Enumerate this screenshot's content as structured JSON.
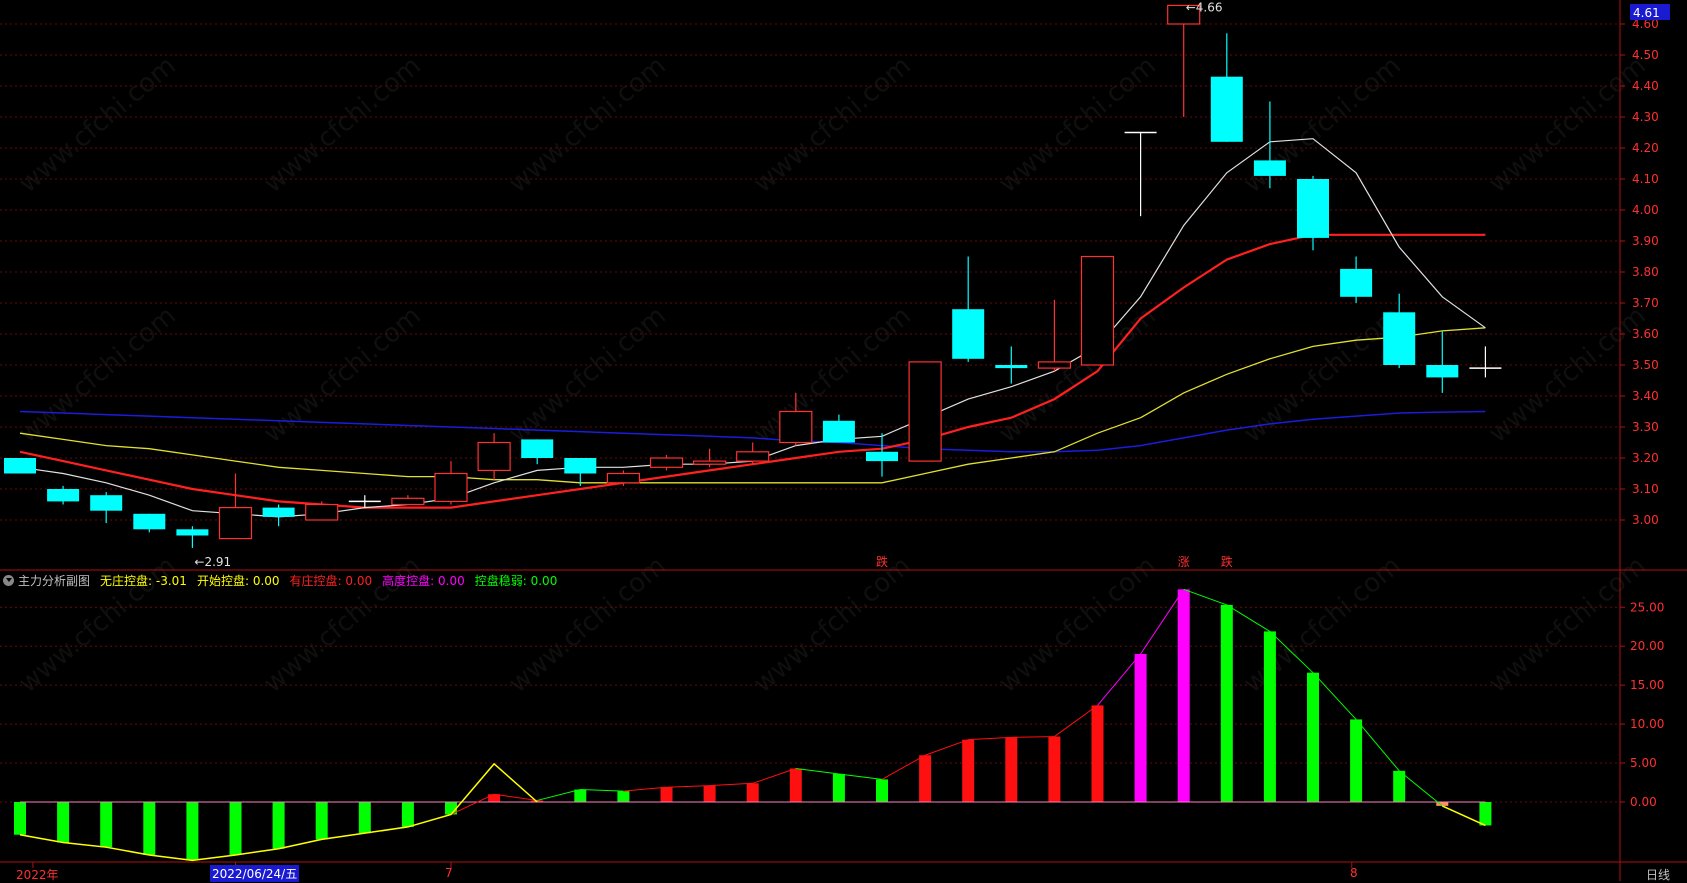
{
  "chart_data": [
    {
      "type": "candlestick",
      "ylim": [
        2.9,
        4.61
      ],
      "yticks": [
        3.0,
        3.1,
        3.2,
        3.3,
        3.4,
        3.5,
        3.6,
        3.7,
        3.8,
        3.9,
        4.0,
        4.1,
        4.2,
        4.3,
        4.4,
        4.5,
        4.6
      ],
      "top_value_label": "4.61",
      "candles": [
        {
          "o": 3.2,
          "h": 3.2,
          "l": 3.15,
          "c": 3.15
        },
        {
          "o": 3.1,
          "h": 3.11,
          "l": 3.05,
          "c": 3.06
        },
        {
          "o": 3.08,
          "h": 3.09,
          "l": 2.99,
          "c": 3.03
        },
        {
          "o": 3.02,
          "h": 3.02,
          "l": 2.96,
          "c": 2.97
        },
        {
          "o": 2.97,
          "h": 2.98,
          "l": 2.91,
          "c": 2.95
        },
        {
          "o": 2.94,
          "h": 3.15,
          "l": 2.94,
          "c": 3.04
        },
        {
          "o": 3.04,
          "h": 3.05,
          "l": 2.98,
          "c": 3.01
        },
        {
          "o": 3.0,
          "h": 3.06,
          "l": 3.0,
          "c": 3.05
        },
        {
          "o": 3.06,
          "h": 3.08,
          "l": 3.04,
          "c": 3.06
        },
        {
          "o": 3.05,
          "h": 3.08,
          "l": 3.05,
          "c": 3.07
        },
        {
          "o": 3.06,
          "h": 3.19,
          "l": 3.05,
          "c": 3.15
        },
        {
          "o": 3.16,
          "h": 3.28,
          "l": 3.13,
          "c": 3.25
        },
        {
          "o": 3.26,
          "h": 3.26,
          "l": 3.18,
          "c": 3.2
        },
        {
          "o": 3.2,
          "h": 3.2,
          "l": 3.11,
          "c": 3.15
        },
        {
          "o": 3.12,
          "h": 3.16,
          "l": 3.11,
          "c": 3.15
        },
        {
          "o": 3.17,
          "h": 3.21,
          "l": 3.16,
          "c": 3.2
        },
        {
          "o": 3.18,
          "h": 3.23,
          "l": 3.17,
          "c": 3.19
        },
        {
          "o": 3.19,
          "h": 3.25,
          "l": 3.18,
          "c": 3.22
        },
        {
          "o": 3.25,
          "h": 3.41,
          "l": 3.24,
          "c": 3.35
        },
        {
          "o": 3.32,
          "h": 3.34,
          "l": 3.25,
          "c": 3.25
        },
        {
          "o": 3.22,
          "h": 3.28,
          "l": 3.14,
          "c": 3.19
        },
        {
          "o": 3.19,
          "h": 3.51,
          "l": 3.19,
          "c": 3.51
        },
        {
          "o": 3.68,
          "h": 3.85,
          "l": 3.51,
          "c": 3.52
        },
        {
          "o": 3.5,
          "h": 3.56,
          "l": 3.44,
          "c": 3.49
        },
        {
          "o": 3.49,
          "h": 3.71,
          "l": 3.48,
          "c": 3.51
        },
        {
          "o": 3.5,
          "h": 3.85,
          "l": 3.5,
          "c": 3.85
        },
        {
          "o": 4.25,
          "h": 4.25,
          "l": 3.98,
          "c": 4.25
        },
        {
          "o": 4.6,
          "h": 4.66,
          "l": 4.3,
          "c": 4.66
        },
        {
          "o": 4.43,
          "h": 4.57,
          "l": 4.22,
          "c": 4.22
        },
        {
          "o": 4.16,
          "h": 4.35,
          "l": 4.07,
          "c": 4.11
        },
        {
          "o": 4.1,
          "h": 4.11,
          "l": 3.87,
          "c": 3.91
        },
        {
          "o": 3.81,
          "h": 3.85,
          "l": 3.7,
          "c": 3.72
        },
        {
          "o": 3.67,
          "h": 3.73,
          "l": 3.49,
          "c": 3.5
        },
        {
          "o": 3.5,
          "h": 3.61,
          "l": 3.41,
          "c": 3.46
        },
        {
          "o": 3.49,
          "h": 3.56,
          "l": 3.46,
          "c": 3.49
        }
      ],
      "ma_white": [
        3.17,
        3.15,
        3.12,
        3.08,
        3.03,
        3.02,
        3.01,
        3.02,
        3.04,
        3.05,
        3.07,
        3.12,
        3.16,
        3.17,
        3.17,
        3.18,
        3.18,
        3.19,
        3.24,
        3.26,
        3.27,
        3.33,
        3.39,
        3.43,
        3.48,
        3.56,
        3.72,
        3.95,
        4.12,
        4.22,
        4.23,
        4.12,
        3.88,
        3.72,
        3.62
      ],
      "ma_red": [
        3.22,
        3.19,
        3.16,
        3.13,
        3.1,
        3.08,
        3.06,
        3.05,
        3.04,
        3.04,
        3.04,
        3.06,
        3.08,
        3.1,
        3.12,
        3.14,
        3.16,
        3.18,
        3.2,
        3.22,
        3.23,
        3.26,
        3.3,
        3.33,
        3.39,
        3.48,
        3.65,
        3.75,
        3.84,
        3.89,
        3.92,
        3.92,
        3.92,
        3.92,
        3.92
      ],
      "ma_yellow": [
        3.28,
        3.26,
        3.24,
        3.23,
        3.21,
        3.19,
        3.17,
        3.16,
        3.15,
        3.14,
        3.14,
        3.13,
        3.13,
        3.12,
        3.12,
        3.12,
        3.12,
        3.12,
        3.12,
        3.12,
        3.12,
        3.15,
        3.18,
        3.2,
        3.22,
        3.28,
        3.33,
        3.41,
        3.47,
        3.52,
        3.56,
        3.58,
        3.59,
        3.61,
        3.62
      ],
      "ma_blue": [
        3.35,
        3.345,
        3.34,
        3.335,
        3.33,
        3.325,
        3.32,
        3.315,
        3.31,
        3.305,
        3.3,
        3.295,
        3.29,
        3.285,
        3.28,
        3.275,
        3.27,
        3.265,
        3.255,
        3.25,
        3.24,
        3.23,
        3.225,
        3.22,
        3.22,
        3.225,
        3.24,
        3.265,
        3.29,
        3.31,
        3.325,
        3.335,
        3.345,
        3.348,
        3.35
      ],
      "annotations": [
        {
          "text": "←2.91",
          "index": 4,
          "value": 2.91
        },
        {
          "text": "←4.66",
          "index": 27,
          "value": 4.66
        }
      ],
      "marker_labels": [
        {
          "text": "跌",
          "index": 20
        },
        {
          "text": "涨",
          "index": 27
        },
        {
          "text": "跌",
          "index": 28
        }
      ]
    },
    {
      "type": "bar",
      "title": "主力分析副图",
      "ylim": [
        -7.5,
        30
      ],
      "yticks": [
        0.0,
        5.0,
        10.0,
        15.0,
        20.0,
        25.0
      ],
      "series": [
        {
          "name": "无庄控盘",
          "value": "-3.01",
          "color": "#ffff00"
        },
        {
          "name": "开始控盘",
          "value": "0.00",
          "color": "#ffff00"
        },
        {
          "name": "有庄控盘",
          "value": "0.00",
          "color": "#ff2020"
        },
        {
          "name": "高度控盘",
          "value": "0.00",
          "color": "#ff00ff"
        },
        {
          "name": "控盘稳弱",
          "value": "0.00",
          "color": "#00ff00"
        }
      ],
      "bars": [
        {
          "v": -4.2,
          "c": "g"
        },
        {
          "v": -5.2,
          "c": "g"
        },
        {
          "v": -5.8,
          "c": "g"
        },
        {
          "v": -6.8,
          "c": "g"
        },
        {
          "v": -7.5,
          "c": "g"
        },
        {
          "v": -6.8,
          "c": "g"
        },
        {
          "v": -6.0,
          "c": "g"
        },
        {
          "v": -4.8,
          "c": "g"
        },
        {
          "v": -4.0,
          "c": "g"
        },
        {
          "v": -3.2,
          "c": "g"
        },
        {
          "v": -1.6,
          "c": "g"
        },
        {
          "v": 1.0,
          "c": "r"
        },
        {
          "v": 0.2,
          "c": "r"
        },
        {
          "v": 1.6,
          "c": "g"
        },
        {
          "v": 1.4,
          "c": "g"
        },
        {
          "v": 1.9,
          "c": "r"
        },
        {
          "v": 2.1,
          "c": "r"
        },
        {
          "v": 2.4,
          "c": "r"
        },
        {
          "v": 4.3,
          "c": "r"
        },
        {
          "v": 3.6,
          "c": "g"
        },
        {
          "v": 2.9,
          "c": "g"
        },
        {
          "v": 6.0,
          "c": "r"
        },
        {
          "v": 8.0,
          "c": "r"
        },
        {
          "v": 8.3,
          "c": "r"
        },
        {
          "v": 8.4,
          "c": "r"
        },
        {
          "v": 12.4,
          "c": "r"
        },
        {
          "v": 19.0,
          "c": "m"
        },
        {
          "v": 27.3,
          "c": "m"
        },
        {
          "v": 25.3,
          "c": "g"
        },
        {
          "v": 21.9,
          "c": "g"
        },
        {
          "v": 16.6,
          "c": "g"
        },
        {
          "v": 10.6,
          "c": "g"
        },
        {
          "v": 4.0,
          "c": "g"
        },
        {
          "v": -0.5,
          "c": "o"
        },
        {
          "v": -3.01,
          "c": "g"
        }
      ],
      "yellow_line": [
        -4.2,
        -5.2,
        -5.8,
        -6.8,
        -7.5,
        -6.8,
        -6.0,
        -4.8,
        -4.0,
        -3.2,
        -1.6,
        4.9,
        0,
        null,
        null,
        null,
        null,
        null,
        null,
        null,
        null,
        null,
        null,
        null,
        null,
        null,
        null,
        null,
        null,
        null,
        null,
        null,
        null,
        -0.5,
        -3.01
      ]
    }
  ],
  "bottom_labels": [
    {
      "text": "2022年",
      "index": 0.3
    },
    {
      "text": "2022/06/24/五",
      "index": 5.0
    },
    {
      "text": "7",
      "index": 10.0
    },
    {
      "text": "8",
      "index": 30.9
    }
  ],
  "period_label": "日线",
  "watermark": "www.cfchi.com"
}
